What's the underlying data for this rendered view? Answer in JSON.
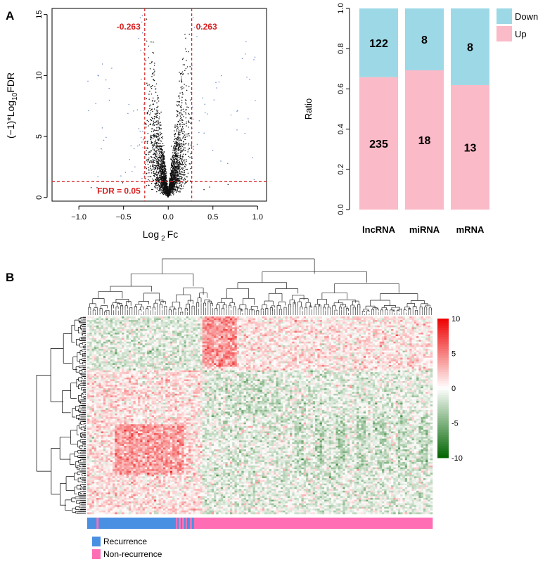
{
  "panel_labels": {
    "a": "A",
    "b": "B"
  },
  "chart_data": [
    {
      "type": "scatter",
      "panel": "A",
      "xlabel_main": "Log",
      "xlabel_sub": "2",
      "xlabel_tail": "Fc",
      "ylabel_pre": "(−1)*Log",
      "ylabel_sub": "10",
      "ylabel_tail": "FDR",
      "xlim": [
        -1.3,
        1.1
      ],
      "ylim": [
        -0.3,
        15.5
      ],
      "xticks": [
        -1.0,
        -0.5,
        0.0,
        0.5,
        1.0
      ],
      "xtick_labels": [
        "−1.0",
        "−0.5",
        "0.0",
        "0.5",
        "1.0"
      ],
      "yticks": [
        0,
        5,
        10,
        15
      ],
      "ytick_labels": [
        "0",
        "5",
        "10",
        "15"
      ],
      "thresholds": {
        "fc_left": -0.263,
        "fc_right": 0.263,
        "fdr": 1.3
      },
      "annotations": {
        "left": "-0.263",
        "right": "0.263",
        "fdr": "FDR = 0.05"
      },
      "colors": {
        "points": "#111111",
        "significant_points": "#6a86c8",
        "threshold": "#d62020",
        "annotation": "#d62020"
      }
    },
    {
      "type": "bar",
      "stacked": true,
      "panel": "A",
      "categories": [
        "lncRNA",
        "miRNA",
        "mRNA"
      ],
      "series": [
        {
          "name": "Up",
          "counts": [
            235,
            18,
            13
          ],
          "color": "#fbbac7"
        },
        {
          "name": "Down",
          "counts": [
            122,
            8,
            8
          ],
          "color": "#9dd8e6"
        }
      ],
      "ylabel": "Ratio",
      "ylim": [
        0,
        1
      ],
      "yticks": [
        0.0,
        0.2,
        0.4,
        0.6,
        0.8,
        1.0
      ],
      "ytick_labels": [
        "0.0",
        "0.2",
        "0.4",
        "0.6",
        "0.8",
        "1.0"
      ],
      "legend": {
        "position": "top-right",
        "entries": [
          "Down",
          "Up"
        ]
      }
    },
    {
      "type": "heatmap",
      "panel": "B",
      "color_scale": {
        "min": -10,
        "max": 10,
        "low": "#006400",
        "mid": "#ffffff",
        "high": "#ee0000"
      },
      "colorbar_ticks": [
        10,
        5,
        0,
        -5,
        -10
      ],
      "colorbar_tick_labels": [
        "10",
        "5",
        "0",
        "-5",
        "-10"
      ],
      "annotation_bar": {
        "colors": {
          "Recurrence": "#4a90e2",
          "Non-recurrence": "#ff6eb4"
        },
        "segments": [
          {
            "group": "Recurrence",
            "fraction": 0.027
          },
          {
            "group": "Non-recurrence",
            "fraction": 0.006
          },
          {
            "group": "Recurrence",
            "fraction": 0.224
          },
          {
            "group": "Non-recurrence",
            "fraction": 0.004
          },
          {
            "group": "Recurrence",
            "fraction": 0.004
          },
          {
            "group": "Non-recurrence",
            "fraction": 0.006
          },
          {
            "group": "Recurrence",
            "fraction": 0.004
          },
          {
            "group": "Non-recurrence",
            "fraction": 0.006
          },
          {
            "group": "Recurrence",
            "fraction": 0.004
          },
          {
            "group": "Non-recurrence",
            "fraction": 0.004
          },
          {
            "group": "Recurrence",
            "fraction": 0.008
          },
          {
            "group": "Non-recurrence",
            "fraction": 0.006
          },
          {
            "group": "Recurrence",
            "fraction": 0.006
          },
          {
            "group": "Non-recurrence",
            "fraction": 0.691
          }
        ]
      },
      "legend": [
        "Recurrence",
        "Non-recurrence"
      ]
    }
  ]
}
